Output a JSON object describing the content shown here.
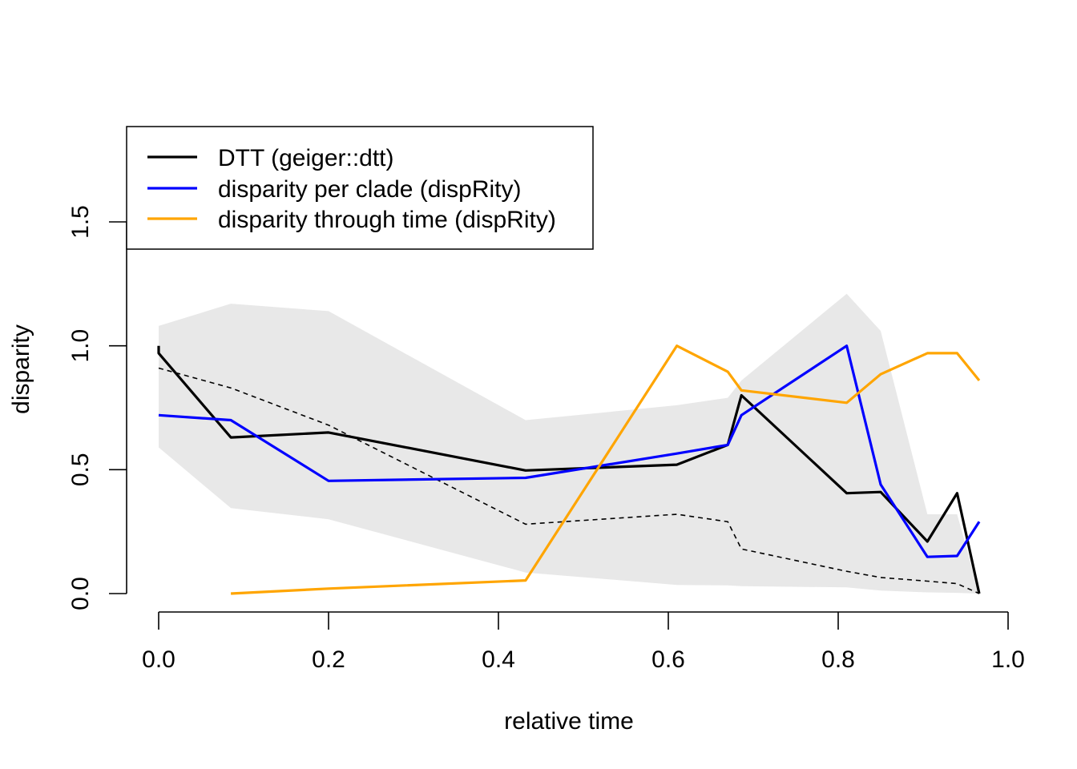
{
  "chart_data": {
    "type": "line",
    "xlabel": "relative time",
    "ylabel": "disparity",
    "xlim": [
      0.0,
      1.0
    ],
    "ylim": [
      0.0,
      1.5
    ],
    "x_ticks": [
      0.0,
      0.2,
      0.4,
      0.6,
      0.8,
      1.0
    ],
    "y_ticks": [
      0.0,
      0.5,
      1.0,
      1.5
    ],
    "x_tick_labels": [
      "0.0",
      "0.2",
      "0.4",
      "0.6",
      "0.8",
      "1.0"
    ],
    "y_tick_labels": [
      "0.0",
      "0.5",
      "1.0",
      "1.5"
    ],
    "grid": false,
    "legend_position": "top-left",
    "envelope": {
      "color": "#e8e8e8",
      "x": [
        0.0,
        0.085,
        0.2,
        0.432,
        0.61,
        0.67,
        0.686,
        0.81,
        0.85,
        0.905,
        0.94,
        0.966
      ],
      "upper": [
        1.08,
        1.17,
        1.14,
        0.7,
        0.76,
        0.79,
        0.86,
        1.21,
        1.06,
        0.32,
        0.32,
        0.0
      ],
      "lower": [
        0.59,
        0.345,
        0.3,
        0.085,
        0.035,
        0.033,
        0.03,
        0.025,
        0.012,
        0.005,
        0.003,
        0.0
      ]
    },
    "reference_line": {
      "style": "dashed",
      "color": "#000000",
      "x": [
        0.0,
        0.085,
        0.2,
        0.432,
        0.61,
        0.67,
        0.686,
        0.81,
        0.85,
        0.905,
        0.94,
        0.966
      ],
      "y": [
        0.91,
        0.83,
        0.68,
        0.28,
        0.32,
        0.29,
        0.18,
        0.09,
        0.065,
        0.05,
        0.04,
        0.0
      ]
    },
    "series": [
      {
        "name": "DTT (geiger::dtt)",
        "color": "#000000",
        "x": [
          0.0,
          0.0,
          0.085,
          0.2,
          0.432,
          0.61,
          0.67,
          0.686,
          0.81,
          0.85,
          0.905,
          0.94,
          0.966
        ],
        "y": [
          1.0,
          0.97,
          0.63,
          0.65,
          0.497,
          0.52,
          0.6,
          0.8,
          0.405,
          0.41,
          0.21,
          0.405,
          0.0
        ]
      },
      {
        "name": "disparity per clade (dispRity)",
        "color": "#0000ff",
        "x": [
          0.0,
          0.085,
          0.2,
          0.432,
          0.61,
          0.67,
          0.686,
          0.81,
          0.85,
          0.905,
          0.94,
          0.966
        ],
        "y": [
          0.72,
          0.7,
          0.455,
          0.467,
          0.565,
          0.6,
          0.72,
          1.0,
          0.44,
          0.148,
          0.152,
          0.29
        ]
      },
      {
        "name": "disparity through time (dispRity)",
        "color": "#ffa500",
        "x": [
          0.085,
          0.2,
          0.432,
          0.61,
          0.67,
          0.686,
          0.81,
          0.85,
          0.905,
          0.94,
          0.966
        ],
        "y": [
          0.0,
          0.02,
          0.053,
          1.0,
          0.895,
          0.82,
          0.77,
          0.885,
          0.97,
          0.97,
          0.86
        ]
      }
    ]
  }
}
